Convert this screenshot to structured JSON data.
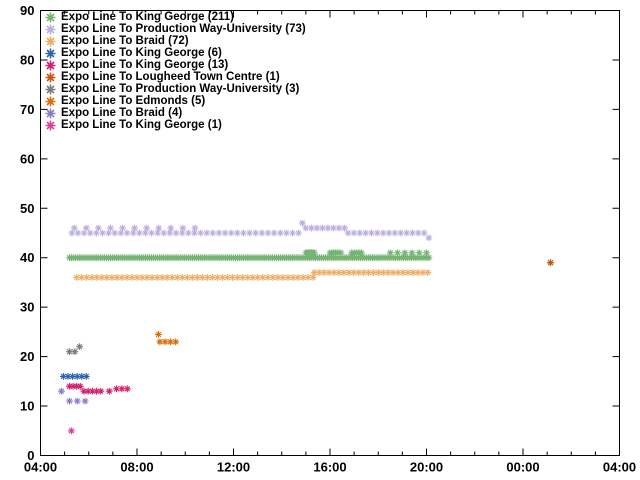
{
  "colors": {
    "background": "#ffffff",
    "axis": "#000000",
    "text": "#000000"
  },
  "chart_data": {
    "type": "scatter",
    "title": "",
    "xlabel": "",
    "ylabel": "",
    "marker": "asterisk",
    "legend_position": "top-left",
    "grid": "off",
    "x_axis": {
      "tick_labels": [
        "04:00",
        "08:00",
        "12:00",
        "16:00",
        "20:00",
        "00:00",
        "04:00"
      ],
      "tick_hours": [
        4,
        8,
        12,
        16,
        20,
        24,
        28
      ],
      "minor_tick_every_hours": 1,
      "range_hours": [
        4,
        28
      ]
    },
    "y_axis": {
      "tick_values": [
        0,
        10,
        20,
        30,
        40,
        50,
        60,
        70,
        80,
        90
      ],
      "range": [
        0,
        90
      ]
    },
    "series": [
      {
        "label": "Expo Line To King George (211)",
        "color": "#74b574",
        "count": 211,
        "runs": [
          {
            "t0": 5.2,
            "t1": 20.1,
            "y": 40,
            "n": 185
          },
          {
            "t0": 15.0,
            "t1": 15.35,
            "y": 41,
            "n": 7
          },
          {
            "t0": 16.0,
            "t1": 16.45,
            "y": 41,
            "n": 7
          },
          {
            "t0": 16.9,
            "t1": 17.3,
            "y": 41,
            "n": 5
          },
          {
            "t0": 18.5,
            "t1": 20.0,
            "y": 41,
            "n": 6
          },
          {
            "t0": 25.14,
            "t1": 25.14,
            "y": 39,
            "n": 1
          }
        ]
      },
      {
        "label": "Expo Line To Production Way-University (73)",
        "color": "#bcaede",
        "count": 73,
        "runs": [
          {
            "t0": 5.3,
            "t1": 14.7,
            "y": 45,
            "n": 38
          },
          {
            "t0": 5.4,
            "t1": 10.4,
            "y": 46,
            "n": 11
          },
          {
            "t0": 14.85,
            "t1": 14.85,
            "y": 47,
            "n": 1
          },
          {
            "t0": 15.0,
            "t1": 16.6,
            "y": 46,
            "n": 8
          },
          {
            "t0": 16.75,
            "t1": 19.9,
            "y": 45,
            "n": 14
          },
          {
            "t0": 20.1,
            "t1": 20.1,
            "y": 44,
            "n": 1
          }
        ]
      },
      {
        "label": "Expo Line To Braid (72)",
        "color": "#f0ad66",
        "count": 72,
        "runs": [
          {
            "t0": 5.5,
            "t1": 15.3,
            "y": 36,
            "n": 48
          },
          {
            "t0": 15.35,
            "t1": 20.05,
            "y": 37,
            "n": 24
          }
        ]
      },
      {
        "label": "Expo Line To King George (6)",
        "color": "#2e63ae",
        "count": 6,
        "runs": [
          {
            "t0": 4.95,
            "t1": 5.9,
            "y": 16,
            "n": 6
          }
        ]
      },
      {
        "label": "Expo Line To King George (13)",
        "color": "#d21f6e",
        "count": 13,
        "runs": [
          {
            "t0": 5.2,
            "t1": 5.65,
            "y": 14,
            "n": 4
          },
          {
            "t0": 5.8,
            "t1": 6.5,
            "y": 13,
            "n": 5
          },
          {
            "t0": 6.85,
            "t1": 6.85,
            "y": 13,
            "n": 1
          },
          {
            "t0": 7.15,
            "t1": 7.6,
            "y": 13.5,
            "n": 3
          }
        ]
      },
      {
        "label": "Expo Line To Lougheed Town Centre (1)",
        "color": "#c9570e",
        "count": 1,
        "runs": [
          {
            "t0": 25.14,
            "t1": 25.14,
            "y": 39,
            "n": 1
          }
        ]
      },
      {
        "label": "Expo Line To Production Way-University (3)",
        "color": "#7c7c7c",
        "count": 3,
        "runs": [
          {
            "t0": 5.2,
            "t1": 5.2,
            "y": 21,
            "n": 1
          },
          {
            "t0": 5.42,
            "t1": 5.42,
            "y": 21,
            "n": 1
          },
          {
            "t0": 5.62,
            "t1": 5.62,
            "y": 22,
            "n": 1
          }
        ]
      },
      {
        "label": "Expo Line To Edmonds (5)",
        "color": "#d96f0f",
        "count": 5,
        "runs": [
          {
            "t0": 8.89,
            "t1": 8.89,
            "y": 24.5,
            "n": 1
          },
          {
            "t0": 8.95,
            "t1": 9.6,
            "y": 23,
            "n": 4
          }
        ]
      },
      {
        "label": "Expo Line To Braid (4)",
        "color": "#8d7dc8",
        "count": 4,
        "runs": [
          {
            "t0": 4.87,
            "t1": 4.87,
            "y": 13,
            "n": 1
          },
          {
            "t0": 5.2,
            "t1": 5.85,
            "y": 11,
            "n": 3
          }
        ]
      },
      {
        "label": "Expo Line To King George (1)",
        "color": "#dc3ea0",
        "count": 1,
        "runs": [
          {
            "t0": 5.28,
            "t1": 5.28,
            "y": 5,
            "n": 1
          }
        ]
      }
    ]
  }
}
